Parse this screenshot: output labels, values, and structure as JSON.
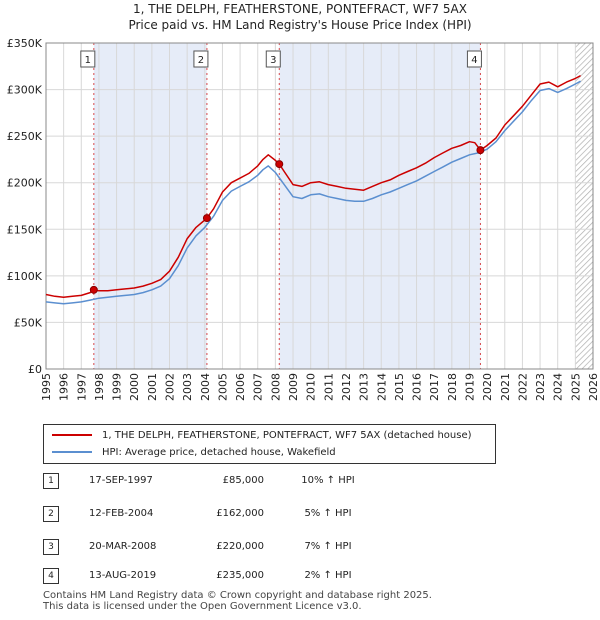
{
  "chart_data": {
    "type": "line",
    "title": "1, THE DELPH, FEATHERSTONE, PONTEFRACT, WF7 5AX",
    "subtitle": "Price paid vs. HM Land Registry's House Price Index (HPI)",
    "xlim": [
      1995,
      2026
    ],
    "ylim": [
      0,
      350000
    ],
    "x_ticks": [
      "1995",
      "1996",
      "1997",
      "1998",
      "1999",
      "2000",
      "2001",
      "2002",
      "2003",
      "2004",
      "2005",
      "2006",
      "2007",
      "2008",
      "2009",
      "2010",
      "2011",
      "2012",
      "2013",
      "2014",
      "2015",
      "2016",
      "2017",
      "2018",
      "2019",
      "2020",
      "2021",
      "2022",
      "2023",
      "2024",
      "2025",
      "2026"
    ],
    "y_ticks": [
      {
        "value": 0,
        "label": "£0"
      },
      {
        "value": 50000,
        "label": "£50K"
      },
      {
        "value": 100000,
        "label": "£100K"
      },
      {
        "value": 150000,
        "label": "£150K"
      },
      {
        "value": 200000,
        "label": "£200K"
      },
      {
        "value": 250000,
        "label": "£250K"
      },
      {
        "value": 300000,
        "label": "£300K"
      },
      {
        "value": 350000,
        "label": "£350K"
      }
    ],
    "shaded_periods": [
      [
        1997.71,
        2004.12
      ],
      [
        2008.22,
        2019.62
      ]
    ],
    "forecast_from": 2025.0,
    "series": [
      {
        "name": "1, THE DELPH, FEATHERSTONE, PONTEFRACT, WF7 5AX (detached house)",
        "color": "#cc0000",
        "x": [
          1995.0,
          1995.5,
          1996.0,
          1996.5,
          1997.0,
          1997.5,
          1997.71,
          1998.0,
          1998.5,
          1999.0,
          1999.5,
          2000.0,
          2000.5,
          2001.0,
          2001.5,
          2002.0,
          2002.5,
          2003.0,
          2003.5,
          2004.0,
          2004.12,
          2004.5,
          2005.0,
          2005.5,
          2006.0,
          2006.5,
          2007.0,
          2007.3,
          2007.6,
          2008.0,
          2008.22,
          2008.5,
          2009.0,
          2009.5,
          2010.0,
          2010.5,
          2011.0,
          2011.5,
          2012.0,
          2012.5,
          2013.0,
          2013.5,
          2014.0,
          2014.5,
          2015.0,
          2015.5,
          2016.0,
          2016.5,
          2017.0,
          2017.5,
          2018.0,
          2018.5,
          2019.0,
          2019.3,
          2019.62,
          2020.0,
          2020.5,
          2021.0,
          2021.5,
          2022.0,
          2022.5,
          2023.0,
          2023.5,
          2024.0,
          2024.5,
          2025.0,
          2025.3
        ],
        "y": [
          80000,
          78000,
          77000,
          78000,
          79000,
          82000,
          85000,
          84000,
          84000,
          85000,
          86000,
          87000,
          89000,
          92000,
          96000,
          105000,
          120000,
          140000,
          152000,
          160000,
          162000,
          172000,
          190000,
          200000,
          205000,
          210000,
          218000,
          225000,
          230000,
          224000,
          220000,
          212000,
          198000,
          196000,
          200000,
          201000,
          198000,
          196000,
          194000,
          193000,
          192000,
          196000,
          200000,
          203000,
          208000,
          212000,
          216000,
          221000,
          227000,
          232000,
          237000,
          240000,
          244000,
          243000,
          235000,
          240000,
          248000,
          262000,
          272000,
          282000,
          294000,
          306000,
          308000,
          303000,
          308000,
          312000,
          315000
        ]
      },
      {
        "name": "HPI: Average price, detached house, Wakefield",
        "color": "#5b8fd0",
        "x": [
          1995.0,
          1995.5,
          1996.0,
          1996.5,
          1997.0,
          1997.5,
          1998.0,
          1998.5,
          1999.0,
          1999.5,
          2000.0,
          2000.5,
          2001.0,
          2001.5,
          2002.0,
          2002.5,
          2003.0,
          2003.5,
          2004.0,
          2004.5,
          2005.0,
          2005.5,
          2006.0,
          2006.5,
          2007.0,
          2007.3,
          2007.6,
          2008.0,
          2008.5,
          2009.0,
          2009.5,
          2010.0,
          2010.5,
          2011.0,
          2011.5,
          2012.0,
          2012.5,
          2013.0,
          2013.5,
          2014.0,
          2014.5,
          2015.0,
          2015.5,
          2016.0,
          2016.5,
          2017.0,
          2017.5,
          2018.0,
          2018.5,
          2019.0,
          2019.5,
          2020.0,
          2020.5,
          2021.0,
          2021.5,
          2022.0,
          2022.5,
          2023.0,
          2023.5,
          2024.0,
          2024.5,
          2025.0,
          2025.3
        ],
        "y": [
          72000,
          71000,
          70000,
          71000,
          72000,
          74000,
          76000,
          77000,
          78000,
          79000,
          80000,
          82000,
          85000,
          89000,
          97000,
          111000,
          130000,
          143000,
          152000,
          164000,
          181000,
          191000,
          196000,
          201000,
          208000,
          214000,
          218000,
          211000,
          198000,
          185000,
          183000,
          187000,
          188000,
          185000,
          183000,
          181000,
          180000,
          180000,
          183000,
          187000,
          190000,
          194000,
          198000,
          202000,
          207000,
          212000,
          217000,
          222000,
          226000,
          230000,
          232000,
          236000,
          244000,
          256000,
          266000,
          276000,
          288000,
          299000,
          301000,
          297000,
          301000,
          306000,
          309000
        ]
      }
    ],
    "markers": [
      {
        "label": "1",
        "x": 1997.71,
        "y": 85000
      },
      {
        "label": "2",
        "x": 2004.12,
        "y": 162000
      },
      {
        "label": "3",
        "x": 2008.22,
        "y": 220000
      },
      {
        "label": "4",
        "x": 2019.62,
        "y": 235000
      }
    ]
  },
  "legend": {
    "property_label": "1, THE DELPH, FEATHERSTONE, PONTEFRACT, WF7 5AX (detached house)",
    "hpi_label": "HPI: Average price, detached house, Wakefield"
  },
  "transactions": [
    {
      "num": "1",
      "date": "17-SEP-1997",
      "price": "£85,000",
      "hpi": "10% ↑ HPI"
    },
    {
      "num": "2",
      "date": "12-FEB-2004",
      "price": "£162,000",
      "hpi": "5% ↑ HPI"
    },
    {
      "num": "3",
      "date": "20-MAR-2008",
      "price": "£220,000",
      "hpi": "7% ↑ HPI"
    },
    {
      "num": "4",
      "date": "13-AUG-2019",
      "price": "£235,000",
      "hpi": "2% ↑ HPI"
    }
  ],
  "footer": {
    "line1": "Contains HM Land Registry data © Crown copyright and database right 2025.",
    "line2": "This data is licensed under the Open Government Licence v3.0."
  }
}
